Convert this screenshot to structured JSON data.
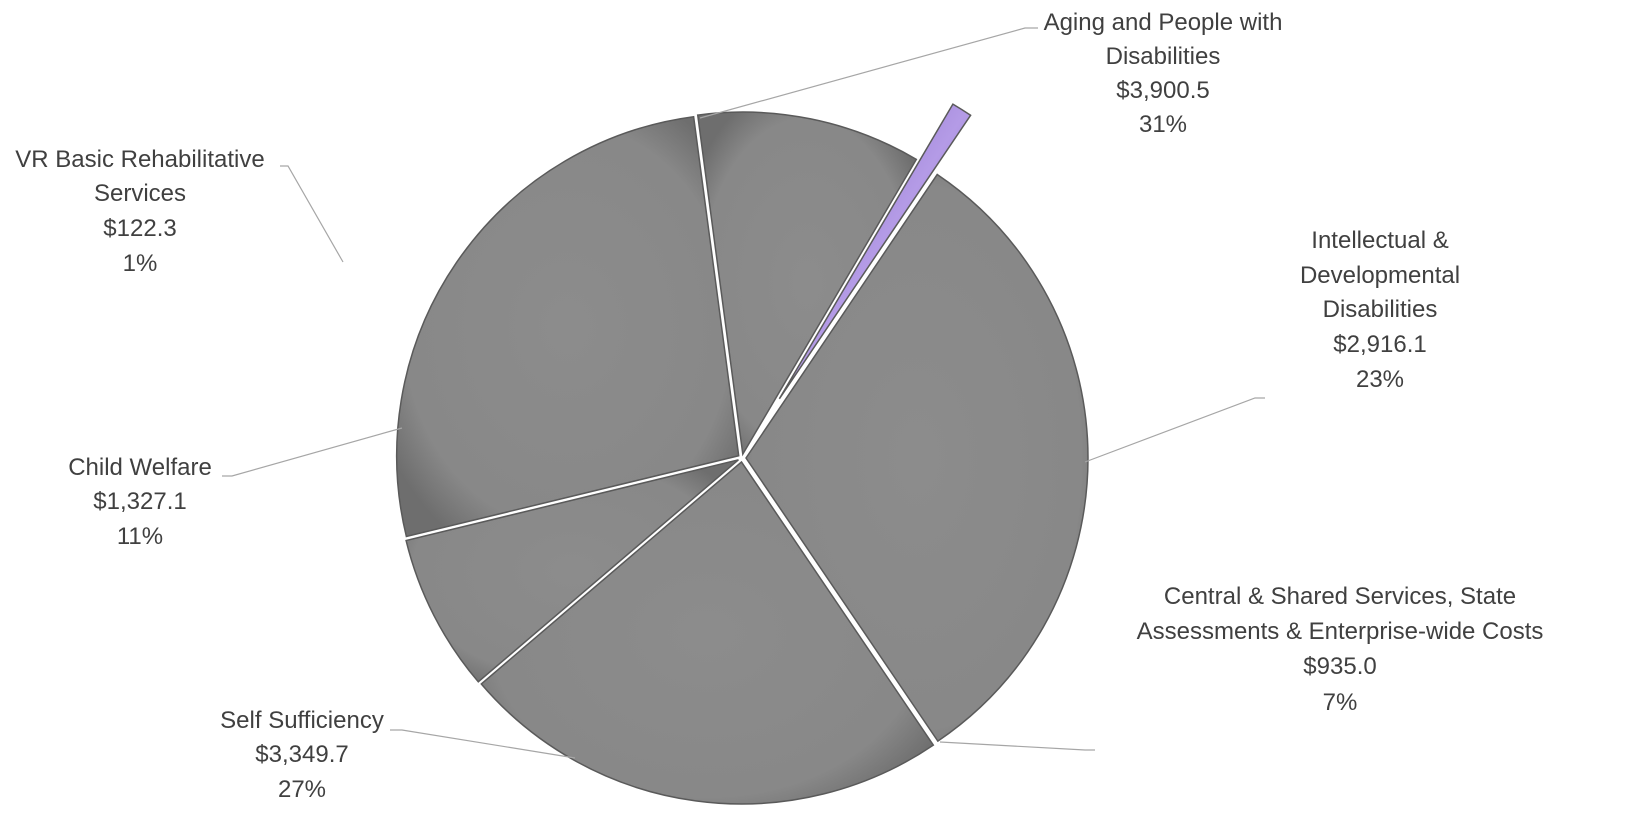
{
  "chart_data": {
    "type": "pie",
    "title": "",
    "colors": {
      "slice": "#8c8c8c",
      "highlight": "#9b7fd1",
      "label_text": "#404040",
      "leader_line": "#a6a6a6"
    },
    "slices": [
      {
        "label": "Aging and People with Disabilities",
        "value_label": "$3,900.5",
        "percent_label": "31%",
        "value": 3900.5,
        "highlighted": false
      },
      {
        "label": "Intellectual & Developmental Disabilities",
        "value_label": "$2,916.1",
        "percent_label": "23%",
        "value": 2916.1,
        "highlighted": false
      },
      {
        "label": "Central & Shared Services, State Assessments & Enterprise-wide Costs",
        "value_label": "$935.0",
        "percent_label": "7%",
        "value": 935.0,
        "highlighted": false
      },
      {
        "label": "Self Sufficiency",
        "value_label": "$3,349.7",
        "percent_label": "27%",
        "value": 3349.7,
        "highlighted": false
      },
      {
        "label": "Child Welfare",
        "value_label": "$1,327.1",
        "percent_label": "11%",
        "value": 1327.1,
        "highlighted": false
      },
      {
        "label": "VR Basic Rehabilitative Services",
        "value_label": "$122.3",
        "percent_label": "1%",
        "value": 122.3,
        "highlighted": true
      }
    ]
  }
}
